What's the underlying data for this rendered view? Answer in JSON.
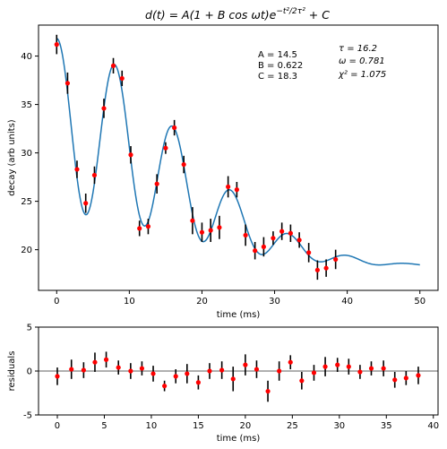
{
  "colors": {
    "curve": "#1f77b4",
    "points": "#ff0000",
    "errorbars": "#000000",
    "zero_line": "#808080",
    "frame": "#000000"
  },
  "chart_data": [
    {
      "type": "scatter",
      "panel": "main",
      "title": "d(t) = A(1 + B cos ωt)e^{−t²/2τ²} + C",
      "title_parts": {
        "lhs": "d(t) = A(1 + B cos ",
        "omega_t": "ωt",
        "mid": ")e",
        "exp": "−t²/2τ²",
        "rhs": " + C"
      },
      "xlabel": "time (ms)",
      "ylabel": "decay (arb units)",
      "xlim": [
        -2.5,
        52.5
      ],
      "ylim": [
        15.8,
        43.2
      ],
      "xticks": [
        0,
        10,
        20,
        30,
        40,
        50
      ],
      "yticks": [
        20,
        25,
        30,
        35,
        40
      ],
      "grid": false,
      "annotations_left": [
        "A = 14.5",
        "B = 0.622",
        "C = 18.3"
      ],
      "annotations_right": [
        "τ = 16.2",
        "ω = 0.781",
        "χ² = 1.075"
      ],
      "fit": {
        "A": 14.5,
        "B": 0.622,
        "C": 18.3,
        "tau": 16.2,
        "omega": 0.781,
        "phase": 0.0,
        "x_range": [
          0,
          50
        ]
      },
      "series": [
        {
          "x": [
            0.0,
            1.5,
            2.8,
            4.0,
            5.2,
            6.5,
            7.8,
            9.0,
            10.2,
            11.4,
            12.6,
            13.8,
            15.0,
            16.2,
            17.5,
            18.7,
            20.0,
            21.2,
            22.4,
            23.6,
            24.8,
            26.0,
            27.3,
            28.5,
            29.8,
            31.0,
            32.2,
            33.4,
            34.7,
            35.9,
            37.1,
            38.4
          ],
          "y": [
            41.2,
            37.2,
            28.3,
            24.8,
            27.7,
            34.6,
            39.0,
            37.7,
            29.8,
            22.2,
            22.4,
            26.8,
            30.5,
            32.6,
            28.8,
            23.0,
            21.8,
            22.0,
            22.3,
            26.5,
            26.2,
            21.5,
            19.9,
            20.3,
            21.2,
            21.9,
            21.7,
            21.0,
            19.7,
            17.9,
            18.1,
            19.0
          ],
          "yerr": [
            1.0,
            1.1,
            0.9,
            1.0,
            0.9,
            1.0,
            0.8,
            0.8,
            0.9,
            0.8,
            0.8,
            1.0,
            0.6,
            0.8,
            0.9,
            1.4,
            1.0,
            1.2,
            1.2,
            1.1,
            0.8,
            1.1,
            0.9,
            1.0,
            0.7,
            0.9,
            0.9,
            0.8,
            1.0,
            1.0,
            0.9,
            1.0
          ]
        }
      ]
    },
    {
      "type": "scatter",
      "panel": "residuals",
      "xlabel": "time (ms)",
      "ylabel": "residuals",
      "xlim": [
        -2.0,
        40.5
      ],
      "ylim": [
        -5,
        5
      ],
      "xticks": [
        0,
        5,
        10,
        15,
        20,
        25,
        30,
        35,
        40
      ],
      "yticks": [
        -5,
        0,
        5
      ],
      "grid": false,
      "zero_line": 0,
      "series": [
        {
          "x": [
            0.0,
            1.5,
            2.8,
            4.0,
            5.2,
            6.5,
            7.8,
            9.0,
            10.2,
            11.4,
            12.6,
            13.8,
            15.0,
            16.2,
            17.5,
            18.7,
            20.0,
            21.2,
            22.4,
            23.6,
            24.8,
            26.0,
            27.3,
            28.5,
            29.8,
            31.0,
            32.2,
            33.4,
            34.7,
            35.9,
            37.1,
            38.4
          ],
          "y": [
            -0.6,
            0.2,
            0.1,
            1.0,
            1.3,
            0.4,
            0.0,
            0.3,
            -0.3,
            -1.7,
            -0.6,
            -0.3,
            -1.3,
            0.0,
            0.1,
            -0.9,
            0.7,
            0.2,
            -2.3,
            0.0,
            1.0,
            -1.1,
            -0.2,
            0.5,
            0.7,
            0.5,
            -0.1,
            0.3,
            0.3,
            -1.0,
            -0.8,
            -0.5
          ],
          "yerr": [
            1.0,
            1.1,
            0.9,
            1.1,
            0.9,
            0.8,
            0.9,
            0.8,
            0.9,
            0.6,
            0.8,
            1.1,
            0.8,
            0.9,
            1.0,
            1.4,
            1.2,
            1.0,
            1.2,
            1.1,
            0.8,
            1.0,
            0.9,
            1.1,
            0.8,
            0.9,
            0.8,
            0.8,
            0.9,
            0.9,
            0.8,
            1.0
          ]
        }
      ]
    }
  ]
}
